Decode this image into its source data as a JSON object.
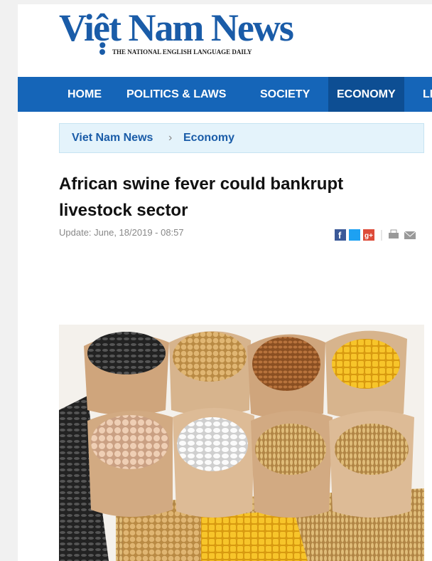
{
  "header": {
    "logo": "Việt Nam News",
    "tagline": "THE NATIONAL ENGLISH LANGUAGE DAILY"
  },
  "nav": {
    "items": [
      "HOME",
      "POLITICS & LAWS",
      "SOCIETY",
      "ECONOMY",
      "LIFE"
    ],
    "active": 3
  },
  "breadcrumb": {
    "items": [
      "Viet Nam News",
      "Economy"
    ]
  },
  "article": {
    "title": "African swine fever could bankrupt livestock sector",
    "update": "Update: June, 18/2019 - 08:57"
  }
}
